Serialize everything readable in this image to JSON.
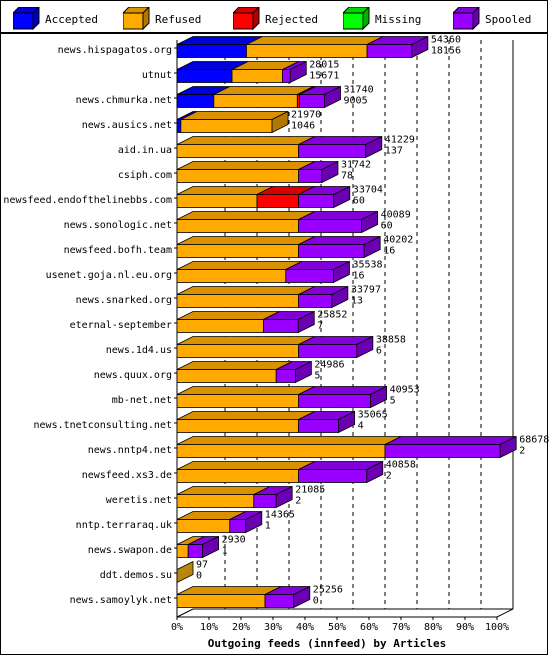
{
  "chart_data": {
    "type": "bar",
    "orientation": "horizontal",
    "stacked": true,
    "style": "3d",
    "title": "Outgoing feeds (innfeed) by Articles",
    "xlabel": "Outgoing feeds (innfeed) by Articles",
    "ylabel": "",
    "xlim": [
      0,
      100
    ],
    "x_unit": "%",
    "x_ticks": [
      "0%",
      "10%",
      "20%",
      "30%",
      "40%",
      "50%",
      "60%",
      "70%",
      "80%",
      "90%",
      "100%"
    ],
    "grid": "vertical dashed",
    "legend_position": "top",
    "categories": [
      "news.hispagatos.org",
      "utnut",
      "news.chmurka.net",
      "news.ausics.net",
      "aid.in.ua",
      "csiph.com",
      "newsfeed.endofthelinebbs.com",
      "news.sonologic.net",
      "newsfeed.bofh.team",
      "usenet.goja.nl.eu.org",
      "news.snarked.org",
      "eternal-september",
      "news.1d4.us",
      "news.quux.org",
      "mb-net.net",
      "news.tnetconsulting.net",
      "news.nntp4.net",
      "newsfeed.xs3.de",
      "weretis.net",
      "nntp.terraraq.uk",
      "news.swapon.de",
      "ddt.demos.su",
      "news.samoylyk.net"
    ],
    "labels_total": [
      54360,
      28015,
      31740,
      21970,
      41229,
      31742,
      33704,
      40089,
      40202,
      35538,
      33797,
      25852,
      38858,
      24986,
      40953,
      35065,
      68678,
      40858,
      21085,
      14365,
      2930,
      97,
      25256
    ],
    "labels_secondary": [
      18156,
      15671,
      9005,
      1046,
      137,
      78,
      60,
      60,
      16,
      16,
      13,
      7,
      6,
      5,
      5,
      4,
      2,
      2,
      2,
      1,
      1,
      0,
      0
    ],
    "series": [
      {
        "name": "Accepted",
        "color": "#0000ff",
        "values": [
          21.7,
          17.2,
          11.5,
          1.2,
          0,
          0,
          0,
          0,
          0,
          0,
          0,
          0,
          0,
          0,
          0,
          0,
          0,
          0,
          0,
          0,
          0,
          0,
          0
        ]
      },
      {
        "name": "Refused",
        "color": "#ffaa00",
        "values": [
          37.7,
          15.8,
          26.1,
          28.5,
          38.0,
          38.0,
          25.0,
          38.0,
          38.0,
          34.0,
          38.0,
          27.0,
          38.0,
          31.0,
          38.0,
          38.0,
          65.0,
          38.0,
          24.0,
          16.5,
          3.5,
          0,
          27.5
        ]
      },
      {
        "name": "Rejected",
        "color": "#ff0000",
        "values": [
          0,
          0,
          0.7,
          0,
          0,
          0,
          13.0,
          0,
          0,
          0,
          0,
          0,
          0,
          0,
          0,
          0,
          0,
          0,
          0,
          0,
          0,
          0,
          0
        ]
      },
      {
        "name": "Missing",
        "color": "#00ff00",
        "values": [
          0,
          0,
          0,
          0,
          0,
          0,
          0,
          0,
          0,
          0,
          0,
          0,
          0,
          0,
          0,
          0,
          0,
          0,
          0,
          0,
          0,
          0,
          0
        ]
      },
      {
        "name": "Spooled",
        "color": "#9900ff",
        "values": [
          14.0,
          2.4,
          7.8,
          0,
          21.0,
          7.3,
          11.0,
          19.7,
          20.5,
          14.9,
          10.4,
          10.9,
          18.2,
          6.0,
          22.5,
          12.5,
          36.0,
          21.3,
          7.0,
          5.0,
          4.5,
          0,
          9.0
        ]
      }
    ]
  }
}
